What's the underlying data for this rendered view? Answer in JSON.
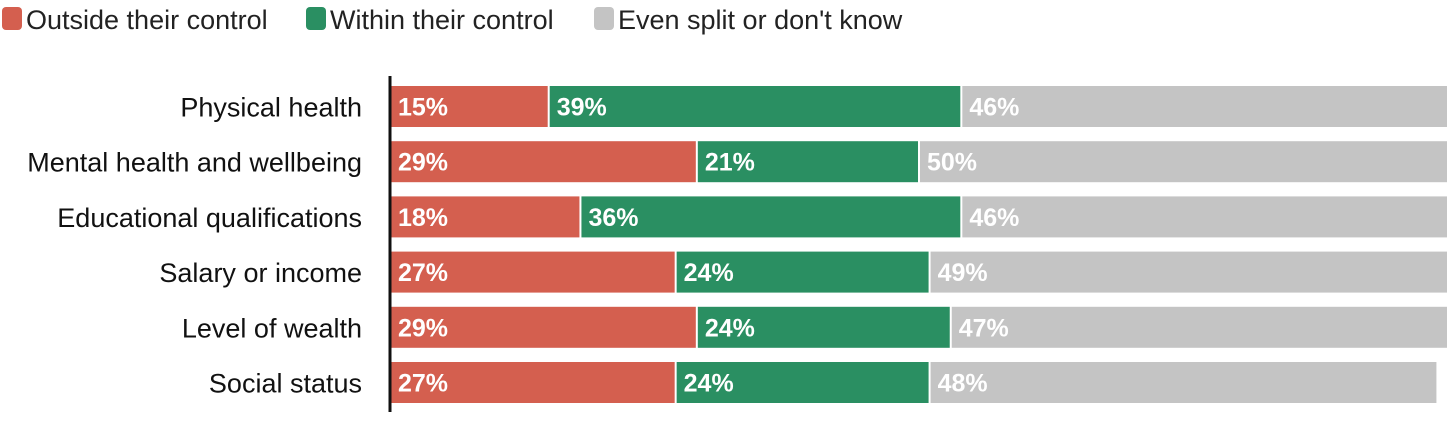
{
  "chart_data": {
    "type": "bar",
    "orientation": "horizontal",
    "stacked": true,
    "title": "",
    "xlabel": "",
    "ylabel": "",
    "xlim": [
      0,
      100
    ],
    "grid": false,
    "legend_position": "top-left",
    "categories": [
      "Physical health",
      "Mental health and wellbeing",
      "Educational qualifications",
      "Salary or income",
      "Level of wealth",
      "Social status"
    ],
    "series": [
      {
        "name": "Outside their control",
        "color": "#d45f4f",
        "values": [
          15,
          29,
          18,
          27,
          29,
          27
        ],
        "labels": [
          "15%",
          "29%",
          "18%",
          "27%",
          "29%",
          "27%"
        ]
      },
      {
        "name": "Within their control",
        "color": "#2a8f62",
        "values": [
          39,
          21,
          36,
          24,
          24,
          24
        ],
        "labels": [
          "39%",
          "21%",
          "36%",
          "24%",
          "24%",
          "24%"
        ]
      },
      {
        "name": "Even split or don't know",
        "color": "#c4c4c4",
        "values": [
          46,
          50,
          46,
          49,
          47,
          48
        ],
        "labels": [
          "46%",
          "50%",
          "46%",
          "49%",
          "47%",
          "48%"
        ]
      }
    ]
  }
}
